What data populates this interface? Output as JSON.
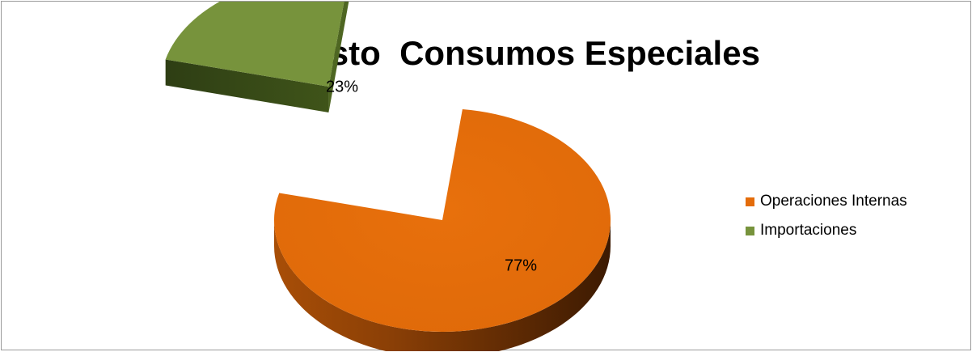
{
  "chart_data": {
    "type": "pie",
    "title": "Impuesto  Consumos Especiales",
    "categories": [
      "Operaciones Internas",
      "Importaciones"
    ],
    "values": [
      77,
      23
    ],
    "data_labels": [
      "77%",
      "23%"
    ],
    "colors": [
      "#E46C0A",
      "#77933C"
    ],
    "exploded": [
      false,
      true
    ],
    "style": "3d",
    "legend": {
      "position": "right",
      "items": [
        {
          "label": "Operaciones Internas",
          "color": "#E46C0A"
        },
        {
          "label": "Importaciones",
          "color": "#77933C"
        }
      ]
    }
  }
}
